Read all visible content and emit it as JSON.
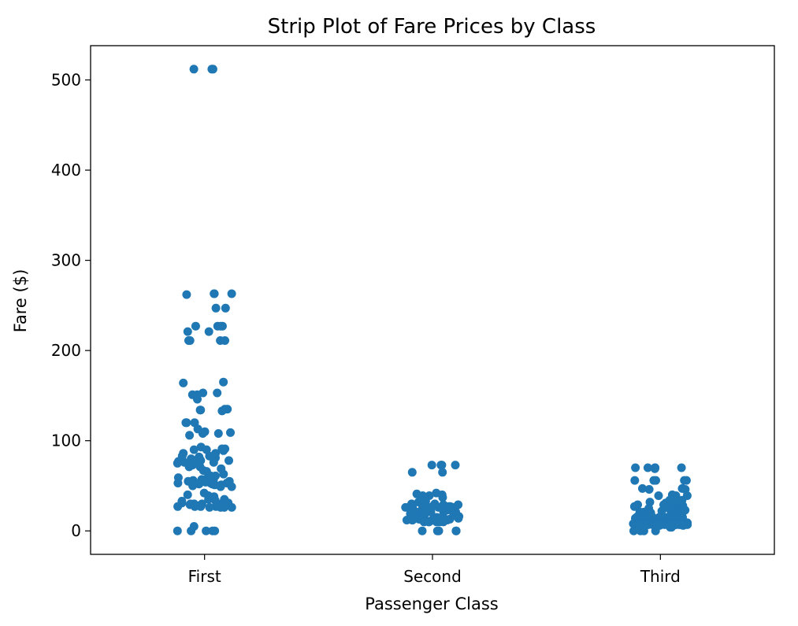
{
  "chart_data": {
    "type": "scatter",
    "subtype": "strip",
    "title": "Strip Plot of Fare Prices by Class",
    "xlabel": "Passenger Class",
    "ylabel": "Fare ($)",
    "categories": [
      "First",
      "Second",
      "Third"
    ],
    "ylim": [
      -26,
      538
    ],
    "yticks": [
      0,
      100,
      200,
      300,
      400,
      500
    ],
    "grid": false,
    "legend": "none",
    "marker_color": "#1f77b4",
    "jitter_fraction": 0.12,
    "series": [
      {
        "category": "First",
        "values": [
          512,
          512,
          512,
          263,
          263,
          263,
          262,
          247,
          247,
          227,
          227,
          227,
          227,
          221,
          221,
          211,
          211,
          211,
          211,
          165,
          164,
          153,
          153,
          151,
          151,
          146,
          135,
          135,
          134,
          134,
          133,
          120,
          120,
          120,
          113,
          110,
          109,
          108,
          108,
          106,
          93,
          91,
          91,
          90,
          90,
          89,
          86,
          86,
          83,
          83,
          83,
          82,
          81,
          80,
          80,
          79,
          79,
          78,
          78,
          77,
          77,
          76,
          76,
          75,
          75,
          73,
          71,
          71,
          69,
          67,
          66,
          63,
          61,
          61,
          59,
          58,
          57,
          57,
          56,
          56,
          55,
          55,
          55,
          54,
          53,
          53,
          53,
          52,
          52,
          52,
          51,
          51,
          50,
          49,
          49,
          42,
          40,
          39,
          38,
          35,
          35,
          34,
          33,
          31,
          31,
          30,
          30,
          30,
          30,
          29,
          29,
          28,
          28,
          27,
          27,
          27,
          27,
          27,
          26,
          26,
          26,
          26,
          5,
          0,
          0,
          0,
          0,
          0
        ]
      },
      {
        "category": "Second",
        "values": [
          73,
          73,
          73,
          73,
          65,
          65,
          42,
          41,
          40,
          39,
          39,
          37,
          36,
          33,
          32,
          31,
          30,
          30,
          29,
          29,
          28,
          27,
          27,
          26,
          26,
          26,
          26,
          26,
          26,
          26,
          26,
          26,
          24,
          24,
          23,
          23,
          23,
          23,
          21,
          21,
          21,
          21,
          21,
          20,
          19,
          19,
          18,
          16,
          16,
          15,
          15,
          14,
          13,
          13,
          13,
          13,
          13,
          13,
          13,
          13,
          13,
          13,
          13,
          12,
          12,
          12,
          12,
          12,
          11,
          11,
          10,
          10,
          10,
          10,
          10,
          10,
          0,
          0,
          0,
          0,
          0
        ]
      },
      {
        "category": "Third",
        "values": [
          70,
          70,
          70,
          70,
          70,
          69,
          56,
          56,
          56,
          56,
          56,
          47,
          47,
          46,
          46,
          40,
          39,
          39,
          39,
          34,
          34,
          32,
          31,
          31,
          30,
          29,
          29,
          28,
          27,
          27,
          25,
          25,
          24,
          24,
          23,
          22,
          22,
          21,
          21,
          21,
          21,
          20,
          20,
          20,
          20,
          19,
          19,
          18,
          18,
          18,
          17,
          17,
          17,
          16,
          16,
          16,
          16,
          15,
          15,
          15,
          15,
          15,
          15,
          14,
          14,
          14,
          14,
          14,
          13,
          13,
          13,
          12,
          12,
          12,
          11,
          11,
          10,
          10,
          10,
          10,
          9,
          9,
          9,
          9,
          9,
          9,
          9,
          8,
          8,
          8,
          8,
          8,
          8,
          8,
          8,
          8,
          8,
          8,
          8,
          8,
          8,
          8,
          8,
          8,
          8,
          8,
          8,
          8,
          8,
          8,
          8,
          8,
          8,
          8,
          8,
          8,
          8,
          7,
          7,
          7,
          7,
          7,
          7,
          7,
          7,
          7,
          7,
          7,
          7,
          7,
          7,
          7,
          7,
          7,
          7,
          7,
          7,
          7,
          7,
          7,
          7,
          7,
          7,
          7,
          7,
          7,
          7,
          7,
          7,
          7,
          7,
          7,
          7,
          7,
          7,
          7,
          7,
          7,
          7,
          7,
          7,
          7,
          7,
          6,
          6,
          5,
          4,
          4,
          0,
          0,
          0,
          0
        ]
      }
    ]
  }
}
